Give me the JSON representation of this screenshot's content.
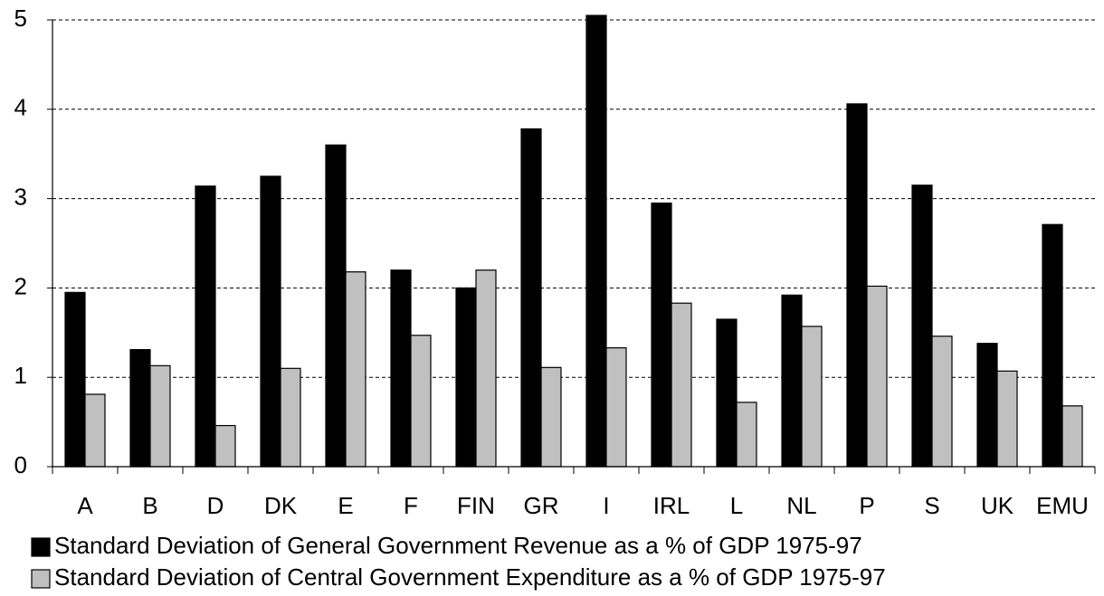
{
  "chart_data": {
    "type": "bar",
    "categories": [
      "A",
      "B",
      "D",
      "DK",
      "E",
      "F",
      "FIN",
      "GR",
      "I",
      "IRL",
      "L",
      "NL",
      "P",
      "S",
      "UK",
      "EMU"
    ],
    "series": [
      {
        "name": "Standard Deviation of General Government Revenue as a % of GDP 1975-97",
        "color": "#000000",
        "values": [
          1.95,
          1.31,
          3.14,
          3.25,
          3.6,
          2.2,
          2.0,
          3.78,
          5.05,
          2.95,
          1.65,
          1.92,
          4.06,
          3.15,
          1.38,
          2.71
        ]
      },
      {
        "name": "Standard Deviation of Central Government Expenditure as a % of GDP 1975-97",
        "color": "#c0c0c0",
        "values": [
          0.81,
          1.13,
          0.46,
          1.1,
          2.18,
          1.47,
          2.2,
          1.11,
          1.33,
          1.83,
          0.72,
          1.57,
          2.02,
          1.46,
          1.07,
          0.68
        ]
      }
    ],
    "ylim": [
      0,
      5
    ],
    "yticks": [
      0,
      1,
      2,
      3,
      4,
      5
    ],
    "grid": true
  }
}
